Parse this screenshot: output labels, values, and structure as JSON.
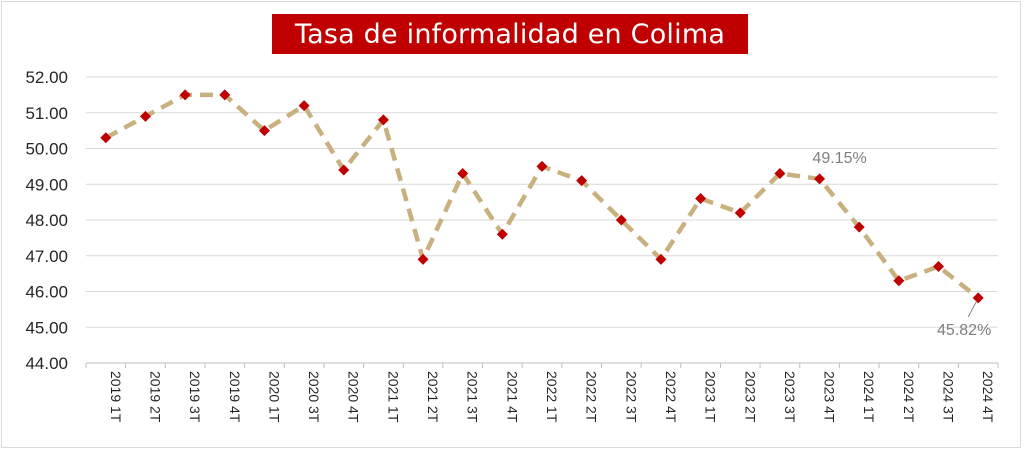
{
  "chart_data": {
    "type": "line",
    "title": "Tasa de informalidad en Colima",
    "categories": [
      "2019 1T",
      "2019 2T",
      "2019 3T",
      "2019 4T",
      "2020 1T",
      "2020 3T",
      "2020 4T",
      "2021 1T",
      "2021 2T",
      "2021 3T",
      "2021 4T",
      "2022 1T",
      "2022 2T",
      "2022 3T",
      "2022 4T",
      "2023 1T",
      "2023 2T",
      "2023 3T",
      "2023 4T",
      "2024 1T",
      "2024 2T",
      "2024 3T",
      "2024 4T"
    ],
    "series": [
      {
        "values": [
          50.3,
          50.9,
          51.5,
          51.5,
          50.5,
          51.2,
          49.4,
          50.8,
          46.9,
          49.3,
          47.6,
          49.5,
          49.1,
          48.0,
          46.9,
          48.6,
          48.2,
          49.3,
          49.15,
          47.8,
          46.3,
          46.7,
          45.82
        ]
      }
    ],
    "ylim": [
      44.0,
      52.0
    ],
    "yticks": [
      "44.00",
      "45.00",
      "46.00",
      "47.00",
      "48.00",
      "49.00",
      "50.00",
      "51.00",
      "52.00"
    ],
    "grid": true,
    "annotations": [
      {
        "category": "2023 4T",
        "text": "49.15%"
      },
      {
        "category": "2024 4T",
        "text": "45.82%"
      }
    ],
    "colors": {
      "line": "#c9b07f",
      "marker": "#c00000",
      "grid": "#d9d9d9",
      "title_bg": "#c00000",
      "title_fg": "#ffffff",
      "annotation": "#7f7f7f"
    }
  }
}
